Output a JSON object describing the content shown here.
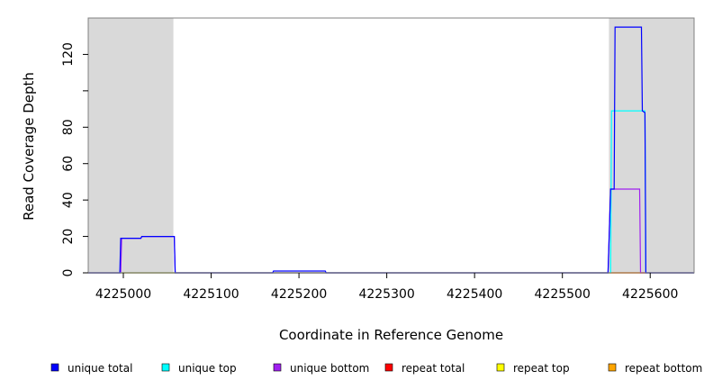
{
  "chart_data": {
    "type": "line",
    "xlabel": "Coordinate in Reference Genome",
    "ylabel": "Read Coverage Depth",
    "xlim": [
      4224960,
      4225650
    ],
    "ylim": [
      0,
      140
    ],
    "x_ticks": [
      4225000,
      4225100,
      4225200,
      4225300,
      4225400,
      4225500,
      4225600
    ],
    "y_ticks": [
      0,
      20,
      40,
      60,
      80,
      100,
      120
    ],
    "y_tick_labels": [
      "0",
      "20",
      "40",
      "60",
      "80",
      "",
      "120"
    ],
    "shaded_regions": [
      {
        "x": [
          4224960,
          4225057
        ],
        "color": "#d9d9d9"
      },
      {
        "x": [
          4225553,
          4225650
        ],
        "color": "#d9d9d9"
      }
    ],
    "legend_position": "bottom",
    "series": [
      {
        "name": "unique total",
        "color": "#0000ff",
        "points": [
          [
            4224960,
            0
          ],
          [
            4224996,
            0
          ],
          [
            4224997,
            19
          ],
          [
            4225020,
            19
          ],
          [
            4225021,
            20
          ],
          [
            4225058,
            20
          ],
          [
            4225059,
            0
          ],
          [
            4225170,
            0
          ],
          [
            4225171,
            1
          ],
          [
            4225230,
            1
          ],
          [
            4225231,
            0
          ],
          [
            4225552,
            0
          ],
          [
            4225555,
            46
          ],
          [
            4225559,
            46
          ],
          [
            4225560,
            135
          ],
          [
            4225590,
            135
          ],
          [
            4225591,
            89
          ],
          [
            4225594,
            88
          ],
          [
            4225595,
            0
          ],
          [
            4225650,
            0
          ]
        ]
      },
      {
        "name": "unique top",
        "color": "#00ffff",
        "points": [
          [
            4224960,
            0
          ],
          [
            4225555,
            0
          ],
          [
            4225556,
            89
          ],
          [
            4225594,
            89
          ],
          [
            4225595,
            0
          ],
          [
            4225650,
            0
          ]
        ]
      },
      {
        "name": "unique bottom",
        "color": "#a020f0",
        "points": [
          [
            4224960,
            0
          ],
          [
            4224997,
            0
          ],
          [
            4224998,
            19
          ],
          [
            4225020,
            19
          ],
          [
            4225021,
            20
          ],
          [
            4225058,
            20
          ],
          [
            4225059,
            0
          ],
          [
            4225552,
            0
          ],
          [
            4225555,
            46
          ],
          [
            4225588,
            46
          ],
          [
            4225589,
            0
          ],
          [
            4225650,
            0
          ]
        ]
      },
      {
        "name": "repeat total",
        "color": "#ff0000",
        "points": [
          [
            4224960,
            0
          ],
          [
            4225650,
            0
          ]
        ]
      },
      {
        "name": "repeat top",
        "color": "#ffff00",
        "points": [
          [
            4224960,
            0
          ],
          [
            4225650,
            0
          ]
        ]
      },
      {
        "name": "repeat bottom",
        "color": "#ffa500",
        "points": [
          [
            4224960,
            0
          ],
          [
            4225650,
            0
          ]
        ]
      }
    ]
  },
  "legend": {
    "items": [
      {
        "label": "unique total",
        "color": "#0000ff"
      },
      {
        "label": "unique top",
        "color": "#00ffff"
      },
      {
        "label": "unique bottom",
        "color": "#a020f0"
      },
      {
        "label": "repeat total",
        "color": "#ff0000"
      },
      {
        "label": "repeat top",
        "color": "#ffff00"
      },
      {
        "label": "repeat bottom",
        "color": "#ffa500"
      }
    ]
  }
}
